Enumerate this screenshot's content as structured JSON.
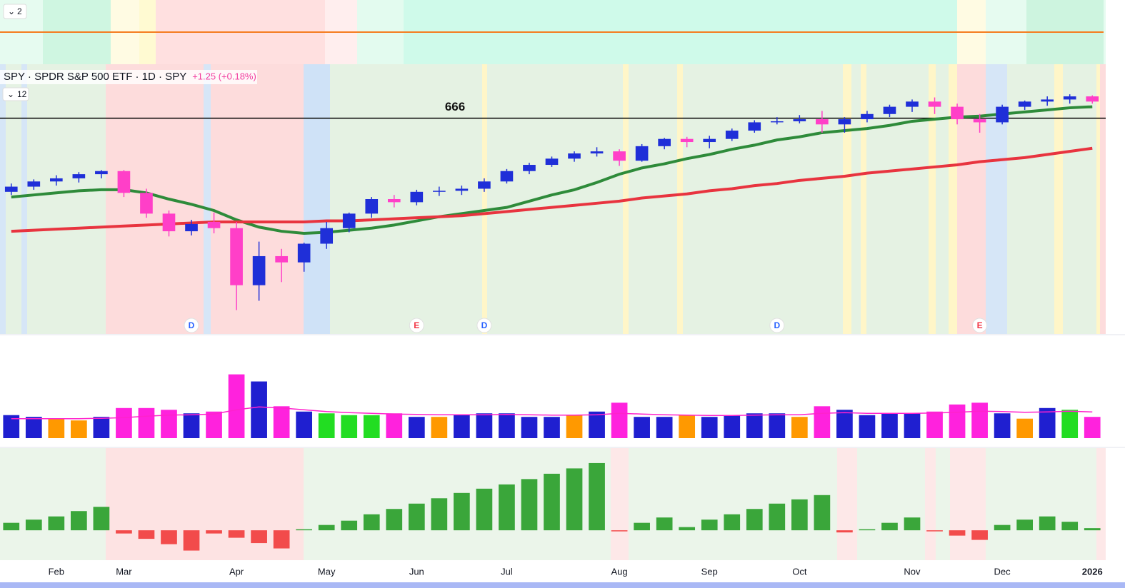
{
  "indicator_label": "2",
  "chart_data": [
    {
      "type": "candlestick",
      "title": "SPY · SPDR S&P 500 ETF · 1D · SPY",
      "subtitle": "+1.25 (+0.18%)",
      "pane_label": "12",
      "categories": [
        null,
        null,
        "Feb",
        null,
        null,
        "Mar",
        null,
        null,
        null,
        null,
        "Apr",
        null,
        null,
        null,
        "May",
        null,
        null,
        null,
        "Jun",
        null,
        null,
        null,
        "Jul",
        null,
        null,
        null,
        null,
        "Aug",
        null,
        null,
        null,
        "Sep",
        null,
        null,
        null,
        "Oct",
        null,
        null,
        null,
        null,
        "Nov",
        null,
        null,
        null,
        "Dec",
        null,
        null,
        null,
        "2026"
      ],
      "open": [
        595,
        600,
        605,
        608,
        612,
        615,
        594,
        574,
        557,
        566,
        560,
        505,
        533,
        527,
        545,
        560,
        574,
        588,
        585,
        595,
        596,
        598,
        605,
        615,
        621,
        627,
        632,
        634,
        625,
        639,
        646,
        643,
        646,
        654,
        662,
        663,
        665,
        660,
        665,
        670,
        677,
        682,
        677,
        665,
        662,
        677,
        682,
        684,
        687
      ],
      "high": [
        603,
        607,
        611,
        614,
        616,
        616,
        598,
        577,
        568,
        575,
        566,
        547,
        540,
        546,
        566,
        575,
        590,
        592,
        597,
        600,
        601,
        608,
        617,
        623,
        629,
        634,
        638,
        636,
        641,
        647,
        648,
        649,
        656,
        664,
        667,
        669,
        673,
        667,
        673,
        679,
        684,
        686,
        680,
        670,
        679,
        683,
        687,
        689,
        688
      ],
      "low": [
        592,
        597,
        601,
        604,
        608,
        590,
        570,
        552,
        553,
        555,
        481,
        490,
        508,
        518,
        540,
        556,
        570,
        580,
        582,
        591,
        592,
        595,
        603,
        612,
        619,
        624,
        629,
        620,
        624,
        636,
        638,
        637,
        644,
        652,
        660,
        661,
        652,
        652,
        662,
        667,
        672,
        670,
        660,
        652,
        660,
        674,
        678,
        680,
        680
      ],
      "close": [
        600,
        605,
        608,
        612,
        615,
        594,
        574,
        557,
        564,
        560,
        505,
        533,
        527,
        545,
        560,
        574,
        588,
        585,
        595,
        596,
        598,
        605,
        615,
        621,
        627,
        632,
        634,
        625,
        639,
        646,
        643,
        646,
        654,
        662,
        663,
        665,
        660,
        665,
        670,
        677,
        682,
        677,
        665,
        662,
        677,
        682,
        684,
        687,
        682
      ],
      "up_color": "#1f2fd8",
      "down_color": "#ff3fc8",
      "ylim": [
        458,
        718
      ],
      "hline": 666,
      "overlays": [
        {
          "color": "#2e8b3a",
          "values": [
            590,
            592,
            594,
            596,
            597,
            597,
            594,
            588,
            583,
            577,
            568,
            561,
            557,
            555,
            556,
            558,
            560,
            563,
            567,
            571,
            574,
            577,
            580,
            586,
            592,
            597,
            604,
            612,
            618,
            622,
            627,
            631,
            636,
            640,
            645,
            648,
            652,
            654,
            656,
            659,
            663,
            665,
            667,
            668,
            670,
            672,
            674,
            676,
            677
          ]
        },
        {
          "color": "#e8343f",
          "values": [
            557,
            558,
            559,
            560,
            561,
            562,
            563,
            564,
            565,
            566,
            566,
            566,
            566,
            566,
            567,
            567,
            568,
            569,
            570,
            571,
            572,
            574,
            576,
            578,
            580,
            582,
            584,
            586,
            589,
            591,
            593,
            596,
            598,
            601,
            603,
            606,
            608,
            610,
            613,
            615,
            617,
            619,
            621,
            624,
            626,
            628,
            631,
            634,
            637
          ]
        }
      ],
      "events": [
        {
          "at": 8,
          "label": "D",
          "color": "#2962ff"
        },
        {
          "at": 18,
          "label": "E",
          "color": "#f23645"
        },
        {
          "at": 21,
          "label": "D",
          "color": "#2962ff"
        },
        {
          "at": 34,
          "label": "D",
          "color": "#2962ff"
        },
        {
          "at": 43,
          "label": "E",
          "color": "#f23645"
        }
      ]
    },
    {
      "type": "bar",
      "values": [
        65,
        60,
        55,
        50,
        60,
        85,
        85,
        80,
        70,
        75,
        180,
        160,
        90,
        75,
        70,
        65,
        65,
        70,
        60,
        60,
        65,
        70,
        70,
        60,
        60,
        65,
        75,
        100,
        60,
        60,
        65,
        60,
        65,
        70,
        70,
        60,
        90,
        80,
        65,
        70,
        70,
        75,
        95,
        100,
        70,
        55,
        85,
        80,
        60
      ],
      "colors": [
        "#1f1fd0",
        "#1f1fd0",
        "#ff9900",
        "#ff9900",
        "#1f1fd0",
        "#ff22dd",
        "#ff22dd",
        "#ff22dd",
        "#1f1fd0",
        "#ff22dd",
        "#ff22dd",
        "#1f1fd0",
        "#ff22dd",
        "#1f1fd0",
        "#22dd22",
        "#22dd22",
        "#22dd22",
        "#ff22dd",
        "#1f1fd0",
        "#ff9900",
        "#1f1fd0",
        "#1f1fd0",
        "#1f1fd0",
        "#1f1fd0",
        "#1f1fd0",
        "#ff9900",
        "#1f1fd0",
        "#ff22dd",
        "#1f1fd0",
        "#1f1fd0",
        "#ff9900",
        "#1f1fd0",
        "#1f1fd0",
        "#1f1fd0",
        "#1f1fd0",
        "#ff9900",
        "#ff22dd",
        "#1f1fd0",
        "#1f1fd0",
        "#1f1fd0",
        "#1f1fd0",
        "#ff22dd",
        "#ff22dd",
        "#ff22dd",
        "#1f1fd0",
        "#ff9900",
        "#1f1fd0",
        "#22dd22",
        "#ff22dd"
      ],
      "ylim": [
        0,
        290
      ],
      "overlay": {
        "color": "#ff22cc",
        "values": [
          55,
          55,
          55,
          55,
          56,
          58,
          62,
          65,
          66,
          68,
          80,
          88,
          85,
          80,
          75,
          72,
          70,
          68,
          67,
          66,
          66,
          66,
          67,
          66,
          65,
          65,
          66,
          70,
          68,
          66,
          65,
          64,
          64,
          65,
          66,
          66,
          70,
          72,
          70,
          70,
          70,
          71,
          73,
          76,
          75,
          73,
          74,
          76,
          74
        ]
      }
    },
    {
      "type": "bar",
      "values": [
        7,
        10,
        13,
        18,
        22,
        -3,
        -8,
        -13,
        -19,
        -3,
        -7,
        -12,
        -17,
        1,
        5,
        9,
        15,
        20,
        25,
        30,
        35,
        39,
        43,
        48,
        53,
        58,
        63,
        -1,
        7,
        12,
        3,
        10,
        15,
        20,
        25,
        29,
        33,
        -2,
        1,
        7,
        12,
        -1,
        -5,
        -9,
        5,
        10,
        13,
        8,
        2
      ],
      "up_color": "#3aa63a",
      "down_color": "#f24b4b",
      "ylim": [
        -28,
        77
      ]
    }
  ]
}
